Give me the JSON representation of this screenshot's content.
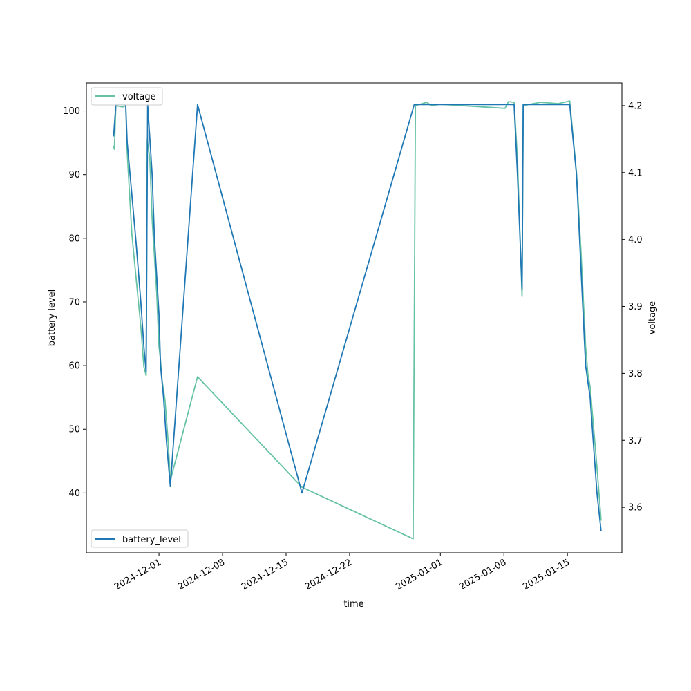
{
  "chart_data": {
    "type": "line",
    "title": "",
    "xlabel": "time",
    "ylabel_left": "battery level",
    "ylabel_right": "voltage",
    "x_ticks": [
      "2024-12-01",
      "2024-12-08",
      "2024-12-15",
      "2024-12-22",
      "2025-01-01",
      "2025-01-08",
      "2025-01-15"
    ],
    "x_range": [
      "2024-11-23",
      "2025-01-21"
    ],
    "y_left_ticks": [
      40,
      50,
      60,
      70,
      80,
      90,
      100
    ],
    "y_left_range": [
      30.6,
      104.4
    ],
    "y_right_ticks": [
      3.6,
      3.7,
      3.8,
      3.9,
      4.0,
      4.1,
      4.2
    ],
    "y_right_range": [
      3.532,
      4.234
    ],
    "grid": false,
    "legends": [
      {
        "position": "top-left",
        "entries": [
          "voltage"
        ]
      },
      {
        "position": "bottom-left",
        "entries": [
          "battery_level"
        ]
      }
    ],
    "series": [
      {
        "name": "battery_level",
        "axis": "left",
        "color": "#1f77b4",
        "points": [
          [
            "2024-11-26T00:00",
            96
          ],
          [
            "2024-11-26T06:00",
            101
          ],
          [
            "2024-11-27T08:00",
            101
          ],
          [
            "2024-11-27T12:00",
            95
          ],
          [
            "2024-11-28T00:00",
            87
          ],
          [
            "2024-11-28T12:00",
            79
          ],
          [
            "2024-11-29T00:00",
            70
          ],
          [
            "2024-11-29T08:00",
            63
          ],
          [
            "2024-11-29T14:00",
            59
          ],
          [
            "2024-11-29T18:00",
            101
          ],
          [
            "2024-11-30T06:00",
            90
          ],
          [
            "2024-11-30T12:00",
            80
          ],
          [
            "2024-12-01T00:00",
            68
          ],
          [
            "2024-12-01T04:00",
            60
          ],
          [
            "2024-12-01T12:00",
            55
          ],
          [
            "2024-12-01T20:00",
            48
          ],
          [
            "2024-12-02T06:00",
            41
          ],
          [
            "2024-12-05T06:00",
            101
          ],
          [
            "2024-12-16T18:00",
            40
          ],
          [
            "2024-12-29T03:00",
            101
          ],
          [
            "2025-01-09T03:00",
            101
          ],
          [
            "2025-01-09T12:00",
            90
          ],
          [
            "2025-01-10T00:00",
            72
          ],
          [
            "2025-01-10T03:00",
            101
          ],
          [
            "2025-01-15T06:00",
            101
          ],
          [
            "2025-01-16T00:00",
            90
          ],
          [
            "2025-01-16T12:00",
            75
          ],
          [
            "2025-01-17T00:00",
            60
          ],
          [
            "2025-01-17T12:00",
            55
          ],
          [
            "2025-01-18T06:00",
            40
          ],
          [
            "2025-01-18T17:00",
            34
          ]
        ]
      },
      {
        "name": "voltage",
        "axis": "right",
        "color": "#66c2a5",
        "points": [
          [
            "2024-11-26T00:00",
            4.14
          ],
          [
            "2024-11-26T02:00",
            4.135
          ],
          [
            "2024-11-26T06:00",
            4.2
          ],
          [
            "2024-11-27T00:00",
            4.198
          ],
          [
            "2024-11-27T08:00",
            4.2
          ],
          [
            "2024-11-27T12:00",
            4.13
          ],
          [
            "2024-11-28T00:00",
            4.01
          ],
          [
            "2024-11-28T12:00",
            3.94
          ],
          [
            "2024-11-29T00:00",
            3.87
          ],
          [
            "2024-11-29T08:00",
            3.81
          ],
          [
            "2024-11-29T14:00",
            3.797
          ],
          [
            "2024-11-29T17:00",
            4.15
          ],
          [
            "2024-11-30T00:00",
            4.12
          ],
          [
            "2024-11-30T06:00",
            4.03
          ],
          [
            "2024-11-30T18:00",
            3.92
          ],
          [
            "2024-12-01T00:00",
            3.84
          ],
          [
            "2024-12-01T04:00",
            3.82
          ],
          [
            "2024-12-01T08:00",
            3.79
          ],
          [
            "2024-12-01T16:00",
            3.76
          ],
          [
            "2024-12-02T00:00",
            3.7
          ],
          [
            "2024-12-02T06:00",
            3.64
          ],
          [
            "2024-12-05T06:00",
            3.795
          ],
          [
            "2024-12-16T18:00",
            3.63
          ],
          [
            "2024-12-29T00:00",
            3.553
          ],
          [
            "2024-12-29T06:00",
            4.2
          ],
          [
            "2024-12-30T12:00",
            4.205
          ],
          [
            "2024-12-31T00:00",
            4.2
          ],
          [
            "2025-01-01T00:00",
            4.202
          ],
          [
            "2025-01-08T03:00",
            4.196
          ],
          [
            "2025-01-08T12:00",
            4.206
          ],
          [
            "2025-01-09T03:00",
            4.205
          ],
          [
            "2025-01-09T12:00",
            4.12
          ],
          [
            "2025-01-10T00:00",
            3.915
          ],
          [
            "2025-01-10T03:00",
            4.2
          ],
          [
            "2025-01-12T00:00",
            4.205
          ],
          [
            "2025-01-14T00:00",
            4.203
          ],
          [
            "2025-01-15T06:00",
            4.207
          ],
          [
            "2025-01-16T00:00",
            4.1
          ],
          [
            "2025-01-16T12:00",
            3.98
          ],
          [
            "2025-01-17T00:00",
            3.84
          ],
          [
            "2025-01-17T06:00",
            3.8
          ],
          [
            "2025-01-17T12:00",
            3.78
          ],
          [
            "2025-01-18T06:00",
            3.66
          ],
          [
            "2025-01-18T17:00",
            3.58
          ]
        ]
      }
    ]
  }
}
